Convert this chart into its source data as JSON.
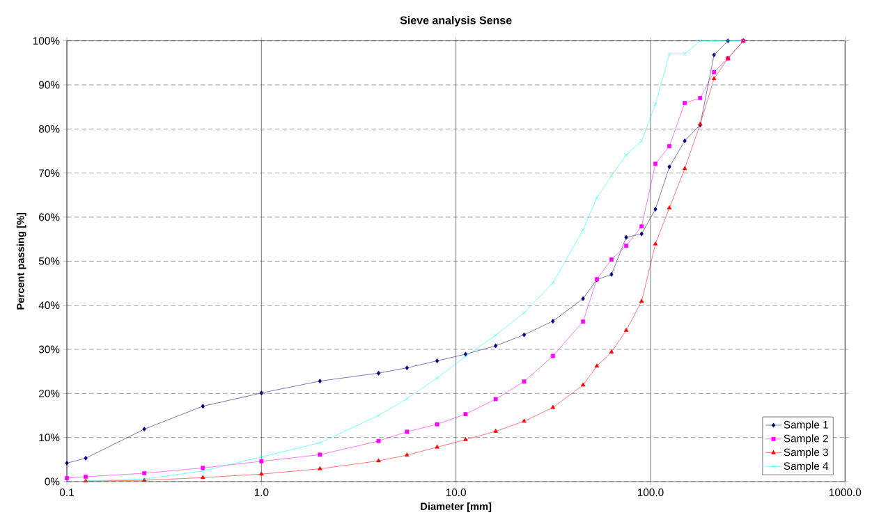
{
  "chart_data": {
    "type": "line",
    "title": "Sieve analysis Sense",
    "xlabel": "Diameter [mm]",
    "ylabel": "Percent passing [%]",
    "log": "x",
    "xlim": [
      0.1,
      1000
    ],
    "xticks": [
      0.1,
      {
        "value": 1,
        "label": "1.0"
      },
      {
        "value": 10,
        "label": "10.0"
      },
      {
        "value": 100,
        "label": "100.0"
      },
      {
        "value": 1000,
        "label": "1000.0"
      }
    ],
    "ylim": [
      0,
      100
    ],
    "yticks": [
      {
        "value": 0,
        "label": "0%"
      },
      {
        "value": 10,
        "label": "10%"
      },
      {
        "value": 20,
        "label": "20%"
      },
      {
        "value": 30,
        "label": "30%"
      },
      {
        "value": 40,
        "label": "40%"
      },
      {
        "value": 50,
        "label": "50%"
      },
      {
        "value": 60,
        "label": "60%"
      },
      {
        "value": 70,
        "label": "70%"
      },
      {
        "value": 80,
        "label": "80%"
      },
      {
        "value": 90,
        "label": "90%"
      },
      {
        "value": 100,
        "label": "100%"
      }
    ],
    "grid": true,
    "legend": "bottom right",
    "line_style": "solid",
    "series": [
      {
        "name": "Sample 1",
        "color": "#000080",
        "marker": "diamond",
        "x": [
          0.1,
          0.125,
          0.25,
          0.5,
          1,
          2,
          4,
          5.6,
          8,
          11.2,
          16,
          22.4,
          31.5,
          45,
          53,
          63,
          75,
          90,
          106,
          125,
          150,
          180,
          212,
          250
        ],
        "values": [
          4.2,
          5.3,
          11.9,
          17.1,
          20.1,
          22.8,
          24.6,
          25.8,
          27.4,
          28.9,
          30.8,
          33.3,
          36.4,
          41.5,
          45.8,
          47,
          55.4,
          56.2,
          61.8,
          71.4,
          77.3,
          80.9,
          96.8,
          100
        ]
      },
      {
        "name": "Sample 2",
        "color": "#ff00ff",
        "marker": "square",
        "x": [
          0.1,
          0.125,
          0.25,
          0.5,
          1,
          2,
          4,
          5.6,
          8,
          11.2,
          16,
          22.4,
          31.5,
          45,
          53,
          63,
          75,
          90,
          106,
          125,
          150,
          180,
          212,
          250,
          300
        ],
        "values": [
          0.8,
          1.1,
          1.9,
          3.1,
          4.6,
          6.1,
          9.2,
          11.3,
          13,
          15.3,
          18.7,
          22.7,
          28.5,
          36.3,
          45.9,
          50.4,
          53.5,
          57.9,
          72.1,
          76.1,
          85.9,
          87,
          92.9,
          96,
          100
        ]
      },
      {
        "name": "Sample 3",
        "color": "#ff0000",
        "marker": "triangle",
        "x": [
          0.125,
          0.25,
          0.5,
          1,
          2,
          4,
          5.6,
          8,
          11.2,
          16,
          22.4,
          31.5,
          45,
          53,
          63,
          75,
          90,
          106,
          125,
          150,
          180,
          212,
          250,
          300
        ],
        "values": [
          0.1,
          0.3,
          0.9,
          1.7,
          2.9,
          4.7,
          6,
          7.8,
          9.5,
          11.4,
          13.7,
          16.8,
          21.9,
          26.2,
          29.4,
          34.3,
          40.9,
          53.9,
          62.1,
          71,
          81.1,
          91.4,
          96,
          100
        ]
      },
      {
        "name": "Sample 4",
        "color": "#00ffff",
        "marker": "cross",
        "x": [
          0.125,
          0.25,
          0.5,
          1,
          2,
          4,
          5.6,
          8,
          11.2,
          16,
          22.4,
          31.5,
          45,
          53,
          63,
          75,
          90,
          106,
          125,
          150,
          180,
          212,
          250,
          300
        ],
        "values": [
          0.2,
          0.6,
          2.4,
          5.6,
          8.8,
          15,
          18.8,
          23.5,
          28.4,
          33.2,
          38.3,
          45.1,
          57.1,
          64.4,
          69.4,
          74.1,
          77.3,
          85.6,
          97,
          97,
          100,
          100,
          100,
          100
        ]
      }
    ]
  }
}
